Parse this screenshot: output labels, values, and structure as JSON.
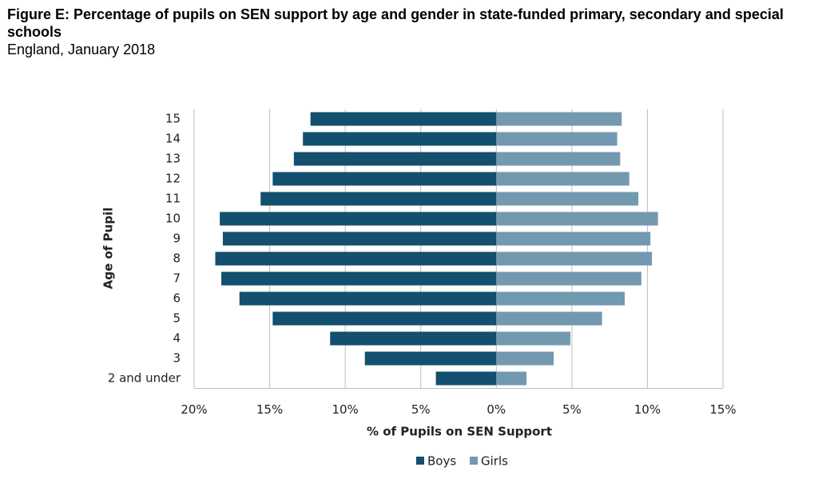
{
  "chart_data": {
    "type": "bar",
    "orientation": "horizontal",
    "title": "Figure E: Percentage of pupils on SEN support by age and gender in state-funded primary, secondary and special schools",
    "subtitle": "England, January 2018",
    "x_label": "% of Pupils on SEN Support",
    "y_label": "Age of Pupil",
    "categories": [
      "2 and under",
      "3",
      "4",
      "5",
      "6",
      "7",
      "8",
      "9",
      "10",
      "11",
      "12",
      "13",
      "14",
      "15"
    ],
    "series": [
      {
        "name": "Boys",
        "color": "#134f6f",
        "values": [
          -4.0,
          -8.7,
          -11.0,
          -14.8,
          -17.0,
          -18.2,
          -18.6,
          -18.1,
          -18.3,
          -15.6,
          -14.8,
          -13.4,
          -12.8,
          -12.3
        ]
      },
      {
        "name": "Girls",
        "color": "#7399b1",
        "values": [
          2.0,
          3.8,
          4.9,
          7.0,
          8.5,
          9.6,
          10.3,
          10.2,
          10.7,
          9.4,
          8.8,
          8.2,
          8.0,
          8.3
        ]
      }
    ],
    "xlim": [
      -20,
      15
    ],
    "xticks": [
      {
        "value": -20,
        "label": "20%"
      },
      {
        "value": -15,
        "label": "15%"
      },
      {
        "value": -10,
        "label": "10%"
      },
      {
        "value": -5,
        "label": "5%"
      },
      {
        "value": 0,
        "label": "0%"
      },
      {
        "value": 5,
        "label": "5%"
      },
      {
        "value": 10,
        "label": "10%"
      },
      {
        "value": 15,
        "label": "15%"
      }
    ],
    "grid": true,
    "legend": "bottom"
  }
}
